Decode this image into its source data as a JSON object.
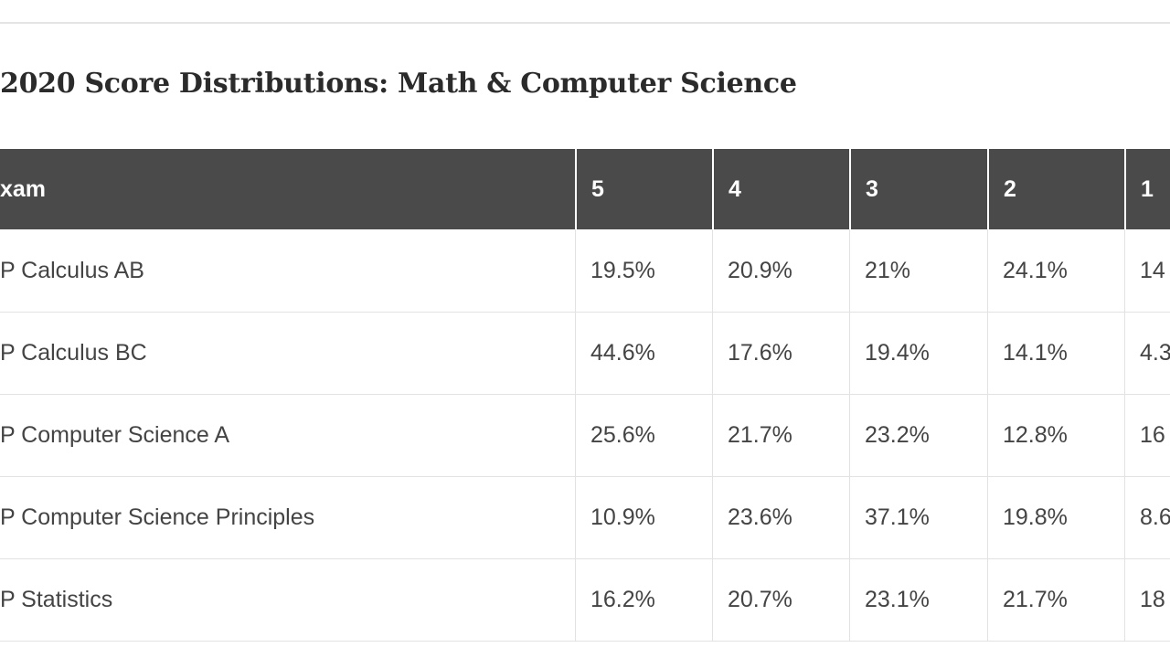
{
  "title": "2020 Score Distributions: Math & Computer Science",
  "table": {
    "header": [
      "xam",
      "5",
      "4",
      "3",
      "2",
      "1"
    ],
    "rows": [
      [
        "P Calculus AB",
        "19.5%",
        "20.9%",
        "21%",
        "24.1%",
        "14"
      ],
      [
        "P Calculus BC",
        "44.6%",
        "17.6%",
        "19.4%",
        "14.1%",
        "4.3"
      ],
      [
        "P Computer Science A",
        "25.6%",
        "21.7%",
        "23.2%",
        "12.8%",
        "16"
      ],
      [
        "P Computer Science Principles",
        "10.9%",
        "23.6%",
        "37.1%",
        "19.8%",
        "8.6"
      ],
      [
        "P Statistics",
        "16.2%",
        "20.7%",
        "23.1%",
        "21.7%",
        "18"
      ]
    ]
  }
}
